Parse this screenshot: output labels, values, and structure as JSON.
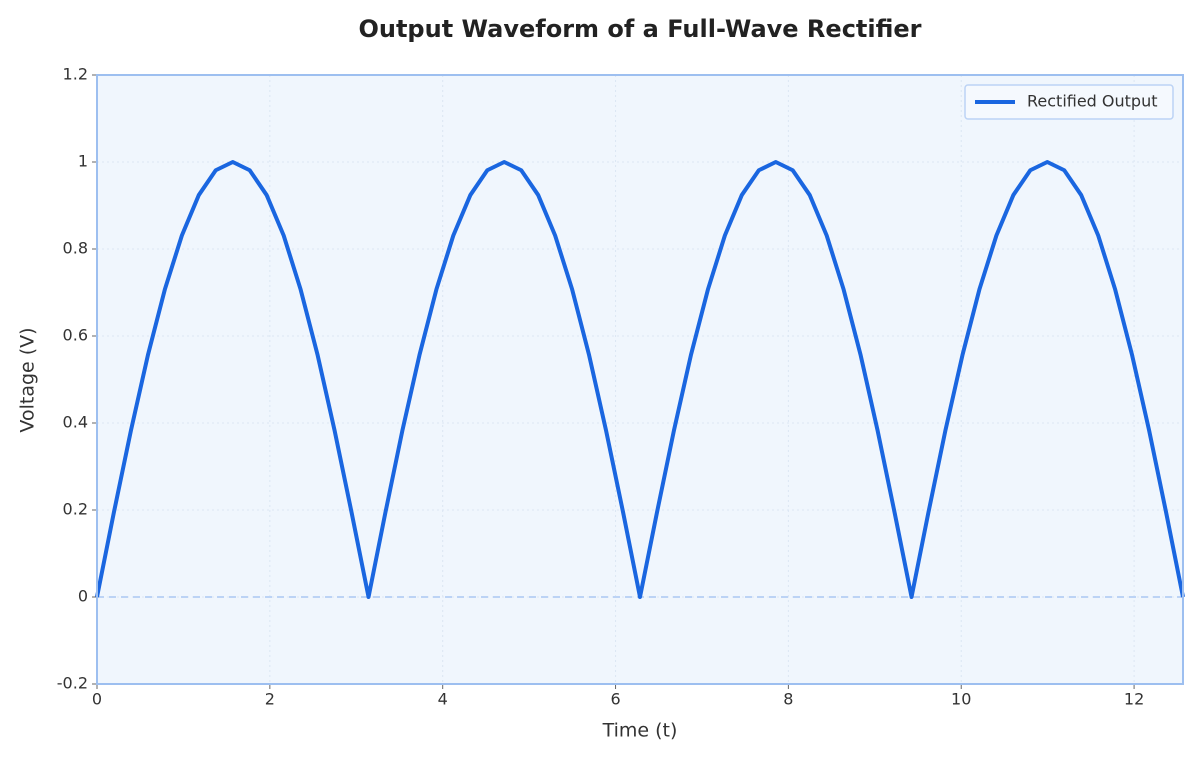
{
  "chart_data": {
    "type": "line",
    "title": "Output Waveform of a Full-Wave Rectifier",
    "xlabel": "Time (t)",
    "ylabel": "Voltage (V)",
    "x": [
      0,
      0.196,
      0.393,
      0.589,
      0.785,
      0.982,
      1.178,
      1.374,
      1.571,
      1.767,
      1.963,
      2.16,
      2.356,
      2.553,
      2.749,
      2.945,
      3.142,
      3.338,
      3.534,
      3.731,
      3.927,
      4.123,
      4.32,
      4.516,
      4.712,
      4.909,
      5.105,
      5.301,
      5.498,
      5.694,
      5.89,
      6.087,
      6.283,
      6.48,
      6.676,
      6.872,
      7.069,
      7.265,
      7.461,
      7.658,
      7.854,
      8.05,
      8.247,
      8.443,
      8.639,
      8.836,
      9.032,
      9.228,
      9.425,
      9.621,
      9.817,
      10.014,
      10.21,
      10.407,
      10.603,
      10.799,
      10.996,
      11.192,
      11.388,
      11.585,
      11.781,
      11.977,
      12.174,
      12.37,
      12.566
    ],
    "series": [
      {
        "name": "Rectified Output",
        "color": "#1a66e0",
        "values": [
          0,
          0.195,
          0.383,
          0.556,
          0.707,
          0.831,
          0.924,
          0.981,
          1,
          0.981,
          0.924,
          0.831,
          0.707,
          0.556,
          0.383,
          0.195,
          0,
          0.195,
          0.383,
          0.556,
          0.707,
          0.831,
          0.924,
          0.981,
          1,
          0.981,
          0.924,
          0.831,
          0.707,
          0.556,
          0.383,
          0.195,
          0,
          0.195,
          0.383,
          0.556,
          0.707,
          0.831,
          0.924,
          0.981,
          1,
          0.981,
          0.924,
          0.831,
          0.707,
          0.556,
          0.383,
          0.195,
          0,
          0.195,
          0.383,
          0.556,
          0.707,
          0.831,
          0.924,
          0.981,
          1,
          0.981,
          0.924,
          0.831,
          0.707,
          0.556,
          0.383,
          0.195,
          0
        ]
      }
    ],
    "xlim": [
      0,
      12.566
    ],
    "ylim": [
      -0.2,
      1.2
    ],
    "xticks": [
      0,
      2,
      4,
      6,
      8,
      10,
      12
    ],
    "yticks": [
      -0.2,
      0,
      0.2,
      0.4,
      0.6,
      0.8,
      1,
      1.2
    ],
    "reference_line": 0,
    "grid": true,
    "legend": "upper right"
  }
}
